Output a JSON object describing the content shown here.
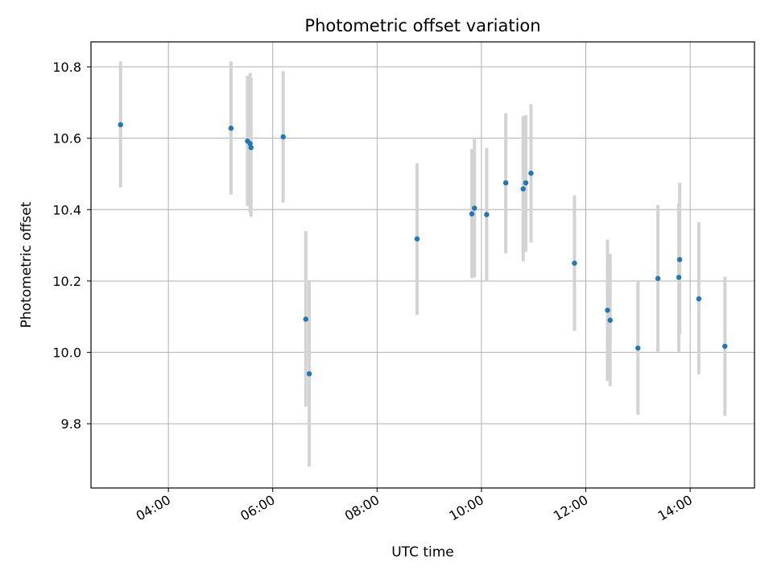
{
  "chart_data": {
    "type": "scatter",
    "title": "Photometric offset variation",
    "xlabel": "UTC time",
    "ylabel": "Photometric offset",
    "x_ticks": [
      "04:00",
      "06:00",
      "08:00",
      "10:00",
      "12:00",
      "14:00"
    ],
    "y_ticks": [
      "9.8",
      "10.0",
      "10.2",
      "10.4",
      "10.6",
      "10.8"
    ],
    "xlim": [
      "02:31",
      "15:14"
    ],
    "ylim": [
      9.62,
      10.87
    ],
    "grid": true,
    "marker_color": "#1f77b4",
    "errorbar_color": "#d3d3d3",
    "series": [
      {
        "points": [
          {
            "t": "03:05",
            "y": 10.638,
            "lo": 10.462,
            "hi": 10.815
          },
          {
            "t": "05:12",
            "y": 10.628,
            "lo": 10.442,
            "hi": 10.815
          },
          {
            "t": "05:31",
            "y": 10.592,
            "lo": 10.41,
            "hi": 10.775
          },
          {
            "t": "05:34",
            "y": 10.585,
            "lo": 10.392,
            "hi": 10.783
          },
          {
            "t": "05:35",
            "y": 10.574,
            "lo": 10.38,
            "hi": 10.77
          },
          {
            "t": "06:12",
            "y": 10.604,
            "lo": 10.42,
            "hi": 10.788
          },
          {
            "t": "06:38",
            "y": 10.093,
            "lo": 9.848,
            "hi": 10.34
          },
          {
            "t": "06:42",
            "y": 9.94,
            "lo": 9.68,
            "hi": 10.2
          },
          {
            "t": "08:46",
            "y": 10.318,
            "lo": 10.105,
            "hi": 10.53
          },
          {
            "t": "09:49",
            "y": 10.388,
            "lo": 10.208,
            "hi": 10.57
          },
          {
            "t": "09:52",
            "y": 10.404,
            "lo": 10.21,
            "hi": 10.598
          },
          {
            "t": "10:06",
            "y": 10.386,
            "lo": 10.2,
            "hi": 10.573
          },
          {
            "t": "10:28",
            "y": 10.475,
            "lo": 10.278,
            "hi": 10.67
          },
          {
            "t": "10:48",
            "y": 10.458,
            "lo": 10.255,
            "hi": 10.662
          },
          {
            "t": "10:51",
            "y": 10.475,
            "lo": 10.282,
            "hi": 10.665
          },
          {
            "t": "10:57",
            "y": 10.502,
            "lo": 10.308,
            "hi": 10.695
          },
          {
            "t": "11:47",
            "y": 10.25,
            "lo": 10.06,
            "hi": 10.44
          },
          {
            "t": "12:25",
            "y": 10.118,
            "lo": 9.92,
            "hi": 10.316
          },
          {
            "t": "12:28",
            "y": 10.09,
            "lo": 9.905,
            "hi": 10.276
          },
          {
            "t": "13:00",
            "y": 10.012,
            "lo": 9.825,
            "hi": 10.198
          },
          {
            "t": "13:23",
            "y": 10.207,
            "lo": 10.002,
            "hi": 10.413
          },
          {
            "t": "13:47",
            "y": 10.21,
            "lo": 10.002,
            "hi": 10.418
          },
          {
            "t": "13:48",
            "y": 10.26,
            "lo": 10.05,
            "hi": 10.475
          },
          {
            "t": "14:10",
            "y": 10.15,
            "lo": 9.938,
            "hi": 10.365
          },
          {
            "t": "14:40",
            "y": 10.017,
            "lo": 9.822,
            "hi": 10.212
          }
        ]
      }
    ]
  }
}
